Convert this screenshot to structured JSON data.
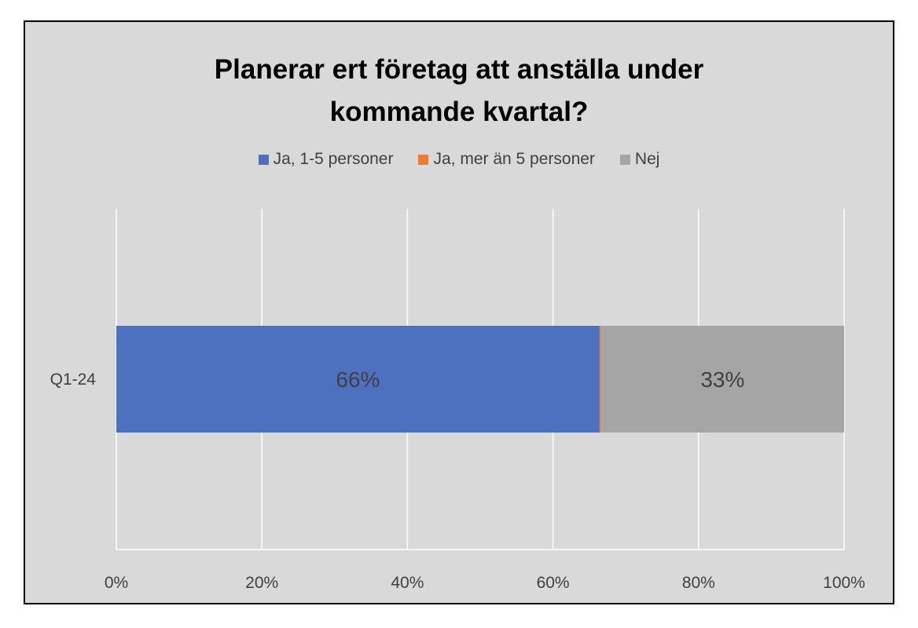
{
  "chart_data": {
    "type": "bar",
    "orientation": "horizontal",
    "stacked": true,
    "title_lines": [
      "Planerar ert företag att anställa under",
      "kommande kvartal?"
    ],
    "categories": [
      "Q1-24"
    ],
    "series": [
      {
        "name": "Ja, 1-5 personer",
        "color": "#4e71bf",
        "values": [
          66.4
        ],
        "label": "66%"
      },
      {
        "name": "Ja, mer än 5 personer",
        "color": "#ed7d31",
        "values": [
          0.2
        ],
        "label": ""
      },
      {
        "name": "Nej",
        "color": "#a5a5a5",
        "values": [
          33.4
        ],
        "label": "33%"
      }
    ],
    "xlim": [
      0,
      100
    ],
    "x_ticks": [
      0,
      20,
      40,
      60,
      80,
      100
    ],
    "x_tick_labels": [
      "0%",
      "20%",
      "40%",
      "60%",
      "80%",
      "100%"
    ],
    "grid": true,
    "legend_position": "top"
  },
  "colors": {
    "background": "#d9d9d9",
    "gridline": "#ffffff",
    "text": "#404040"
  }
}
